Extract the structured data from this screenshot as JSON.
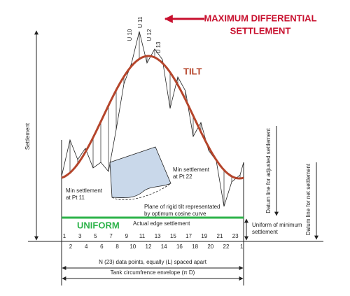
{
  "header": {
    "title_lines": [
      "MAXIMUM DIFFERENTIAL",
      "SETTLEMENT"
    ]
  },
  "labels": {
    "tilt": "TILT",
    "uniform": "UNIFORM",
    "settlement": "Settlement",
    "datum_adjusted": "Datum line for adjusted settlement",
    "datum_net": "Datum line for net settlement",
    "uniform_min": [
      "Uniform of minimum",
      "settlement"
    ],
    "min_pt22": [
      "Min settlement",
      "at Pt 22"
    ],
    "min_pt11": [
      "Min settlement",
      "at Pt 11"
    ],
    "plane": [
      "Plane of rigid tilt representated",
      "by optimum cosine curve"
    ],
    "edge": "Actual edge settlement",
    "n_points": "N (23) data points, equally (L) spaced apart",
    "envelope": "Tank circumfrence envelope (π D)"
  },
  "u_labels": [
    "U 10",
    "U 11",
    "U 12",
    "U 13"
  ],
  "top_points": [
    1,
    3,
    5,
    7,
    9,
    11,
    13,
    15,
    17,
    19,
    21,
    23
  ],
  "bottom_points": [
    2,
    4,
    6,
    8,
    10,
    12,
    14,
    16,
    18,
    20,
    22,
    1
  ]
}
